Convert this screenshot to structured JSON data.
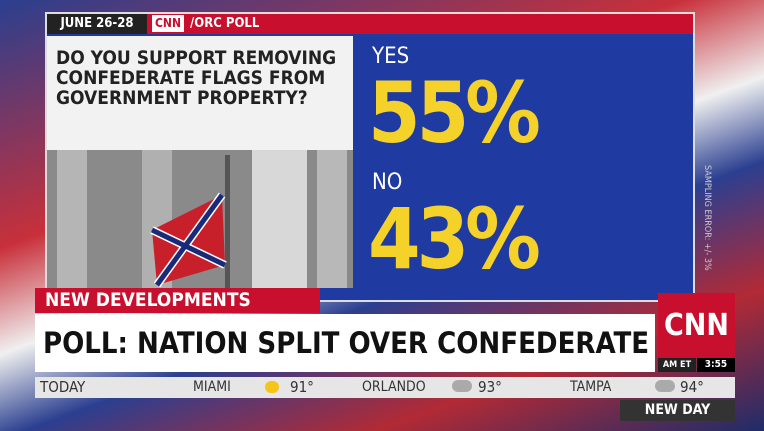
{
  "header": {
    "date": "JUNE 26-28",
    "network": "CNN",
    "source": "/ORC POLL"
  },
  "poll": {
    "question": "DO YOU SUPPORT REMOVING CONFEDERATE FLAGS FROM GOVERNMENT PROPERTY?",
    "answers": [
      {
        "label": "YES",
        "value": "55%"
      },
      {
        "label": "NO",
        "value": "43%"
      }
    ],
    "note": "SAMPLING ERROR: +/- 3%"
  },
  "lower_third": {
    "tag": "NEW DEVELOPMENTS",
    "headline": "POLL: NATION SPLIT OVER CONFEDERATE FLAG",
    "logo": "CNN",
    "zone": "AM ET",
    "time": "3:55"
  },
  "ticker": {
    "label": "TODAY",
    "cities": [
      {
        "name": "MIAMI",
        "temp": "91°"
      },
      {
        "name": "ORLANDO",
        "temp": "93°"
      },
      {
        "name": "TAMPA",
        "temp": "94°"
      }
    ]
  },
  "show": "NEW DAY"
}
